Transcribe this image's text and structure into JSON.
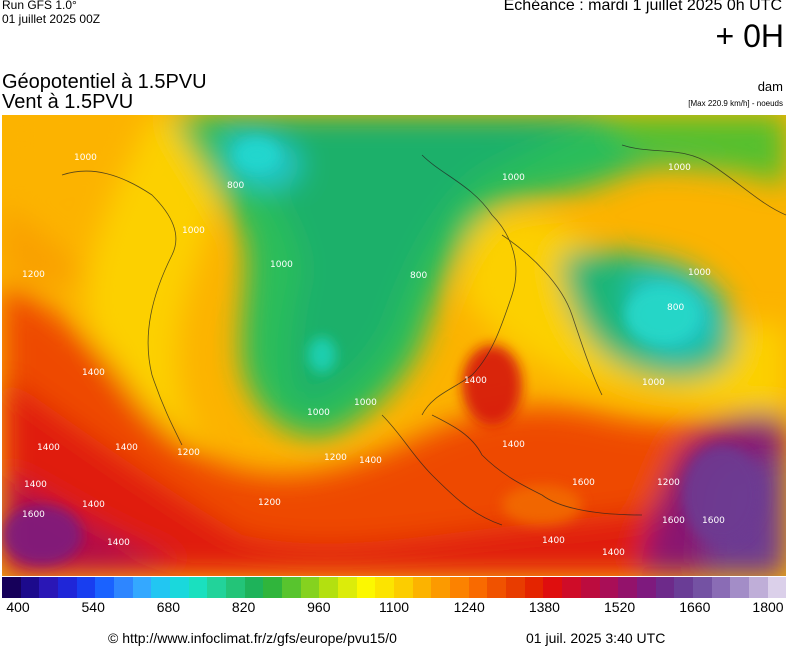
{
  "header": {
    "run": "Run GFS 1.0°",
    "run_date": "01 juillet 2025 00Z",
    "echeance": "Echéance : mardi 1 juillet 2025 0h UTC",
    "hour_offset": "+ 0H"
  },
  "titles": {
    "line1": "Géopotentiel à 1.5PVU",
    "line2": "Vent à 1.5PVU"
  },
  "units": {
    "unit": "dam",
    "max_note": "[Max 220.9 km/h] - noeuds"
  },
  "legend": {
    "labels": [
      "400",
      "540",
      "680",
      "820",
      "960",
      "1100",
      "1240",
      "1380",
      "1520",
      "1660",
      "1800"
    ],
    "colors": [
      "#16005a",
      "#1c0a8c",
      "#2a17b6",
      "#1f26d8",
      "#183ef0",
      "#1a62ff",
      "#2e86ff",
      "#34a8ff",
      "#22c6f2",
      "#1ad8dc",
      "#1ae0bf",
      "#22d39a",
      "#23c478",
      "#1eb35a",
      "#30b53c",
      "#58c42e",
      "#85d21f",
      "#b3e010",
      "#dcec0a",
      "#fcf800",
      "#fce400",
      "#fccd00",
      "#fcb300",
      "#fc9a00",
      "#fc8200",
      "#f96a00",
      "#f05200",
      "#e83c00",
      "#e42400",
      "#df0e0e",
      "#cf0c28",
      "#bc0c3e",
      "#a90e57",
      "#93126b",
      "#7e1a7e",
      "#6d2a8a",
      "#6a3d96",
      "#7452a3",
      "#8a6cb5",
      "#a38dc7",
      "#bfaed8",
      "#dbd0ea"
    ]
  },
  "contour_labels": [
    "1000",
    "800",
    "1000",
    "1200",
    "1000",
    "800",
    "1000",
    "1400",
    "1200",
    "1000",
    "1200",
    "1400",
    "1400",
    "1400",
    "1400",
    "1600",
    "1400",
    "1200",
    "1400",
    "1400",
    "1400",
    "1600",
    "1600",
    "1000",
    "800",
    "1000",
    "1000",
    "1400",
    "1600",
    "1400",
    "1000",
    "1200"
  ],
  "footer": {
    "url": "© http://www.infoclimat.fr/z/gfs/europe/pvu15/0",
    "timestamp": "01 juil. 2025  3:40 UTC"
  }
}
